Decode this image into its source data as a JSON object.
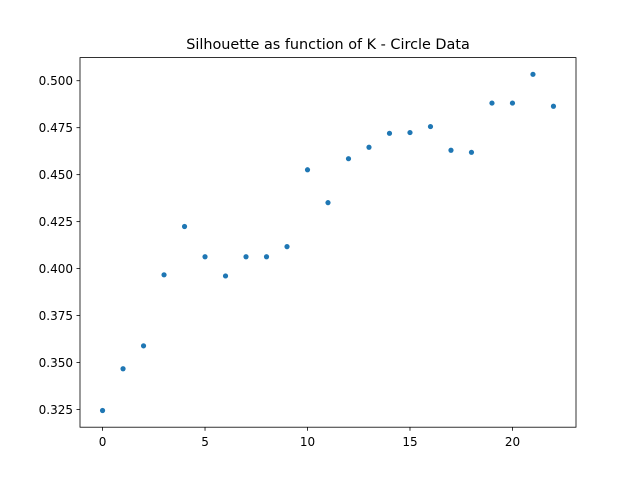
{
  "chart_data": {
    "type": "scatter",
    "title": "Silhouette as function of K - Circle Data",
    "xlabel": "",
    "ylabel": "",
    "x": [
      0,
      1,
      2,
      3,
      4,
      5,
      6,
      7,
      8,
      9,
      10,
      11,
      12,
      13,
      14,
      15,
      16,
      17,
      18,
      19,
      20,
      21,
      22
    ],
    "y": [
      0.3245,
      0.3467,
      0.3589,
      0.3967,
      0.4224,
      0.4063,
      0.3961,
      0.4063,
      0.4063,
      0.4117,
      0.4526,
      0.4351,
      0.4585,
      0.4646,
      0.472,
      0.4724,
      0.4756,
      0.463,
      0.4619,
      0.4881,
      0.4881,
      0.5034,
      0.4864
    ],
    "xlim": [
      -1.1,
      23.1
    ],
    "ylim": [
      0.3156,
      0.5123
    ],
    "x_ticks": [
      0,
      5,
      10,
      15,
      20
    ],
    "x_tick_labels": [
      "0",
      "5",
      "10",
      "15",
      "20"
    ],
    "y_ticks": [
      0.325,
      0.35,
      0.375,
      0.4,
      0.425,
      0.45,
      0.475,
      0.5
    ],
    "y_tick_labels": [
      "0.325",
      "0.350",
      "0.375",
      "0.400",
      "0.425",
      "0.450",
      "0.475",
      "0.500"
    ],
    "grid": false,
    "legend": "none",
    "marker_color": "#1f77b4"
  }
}
